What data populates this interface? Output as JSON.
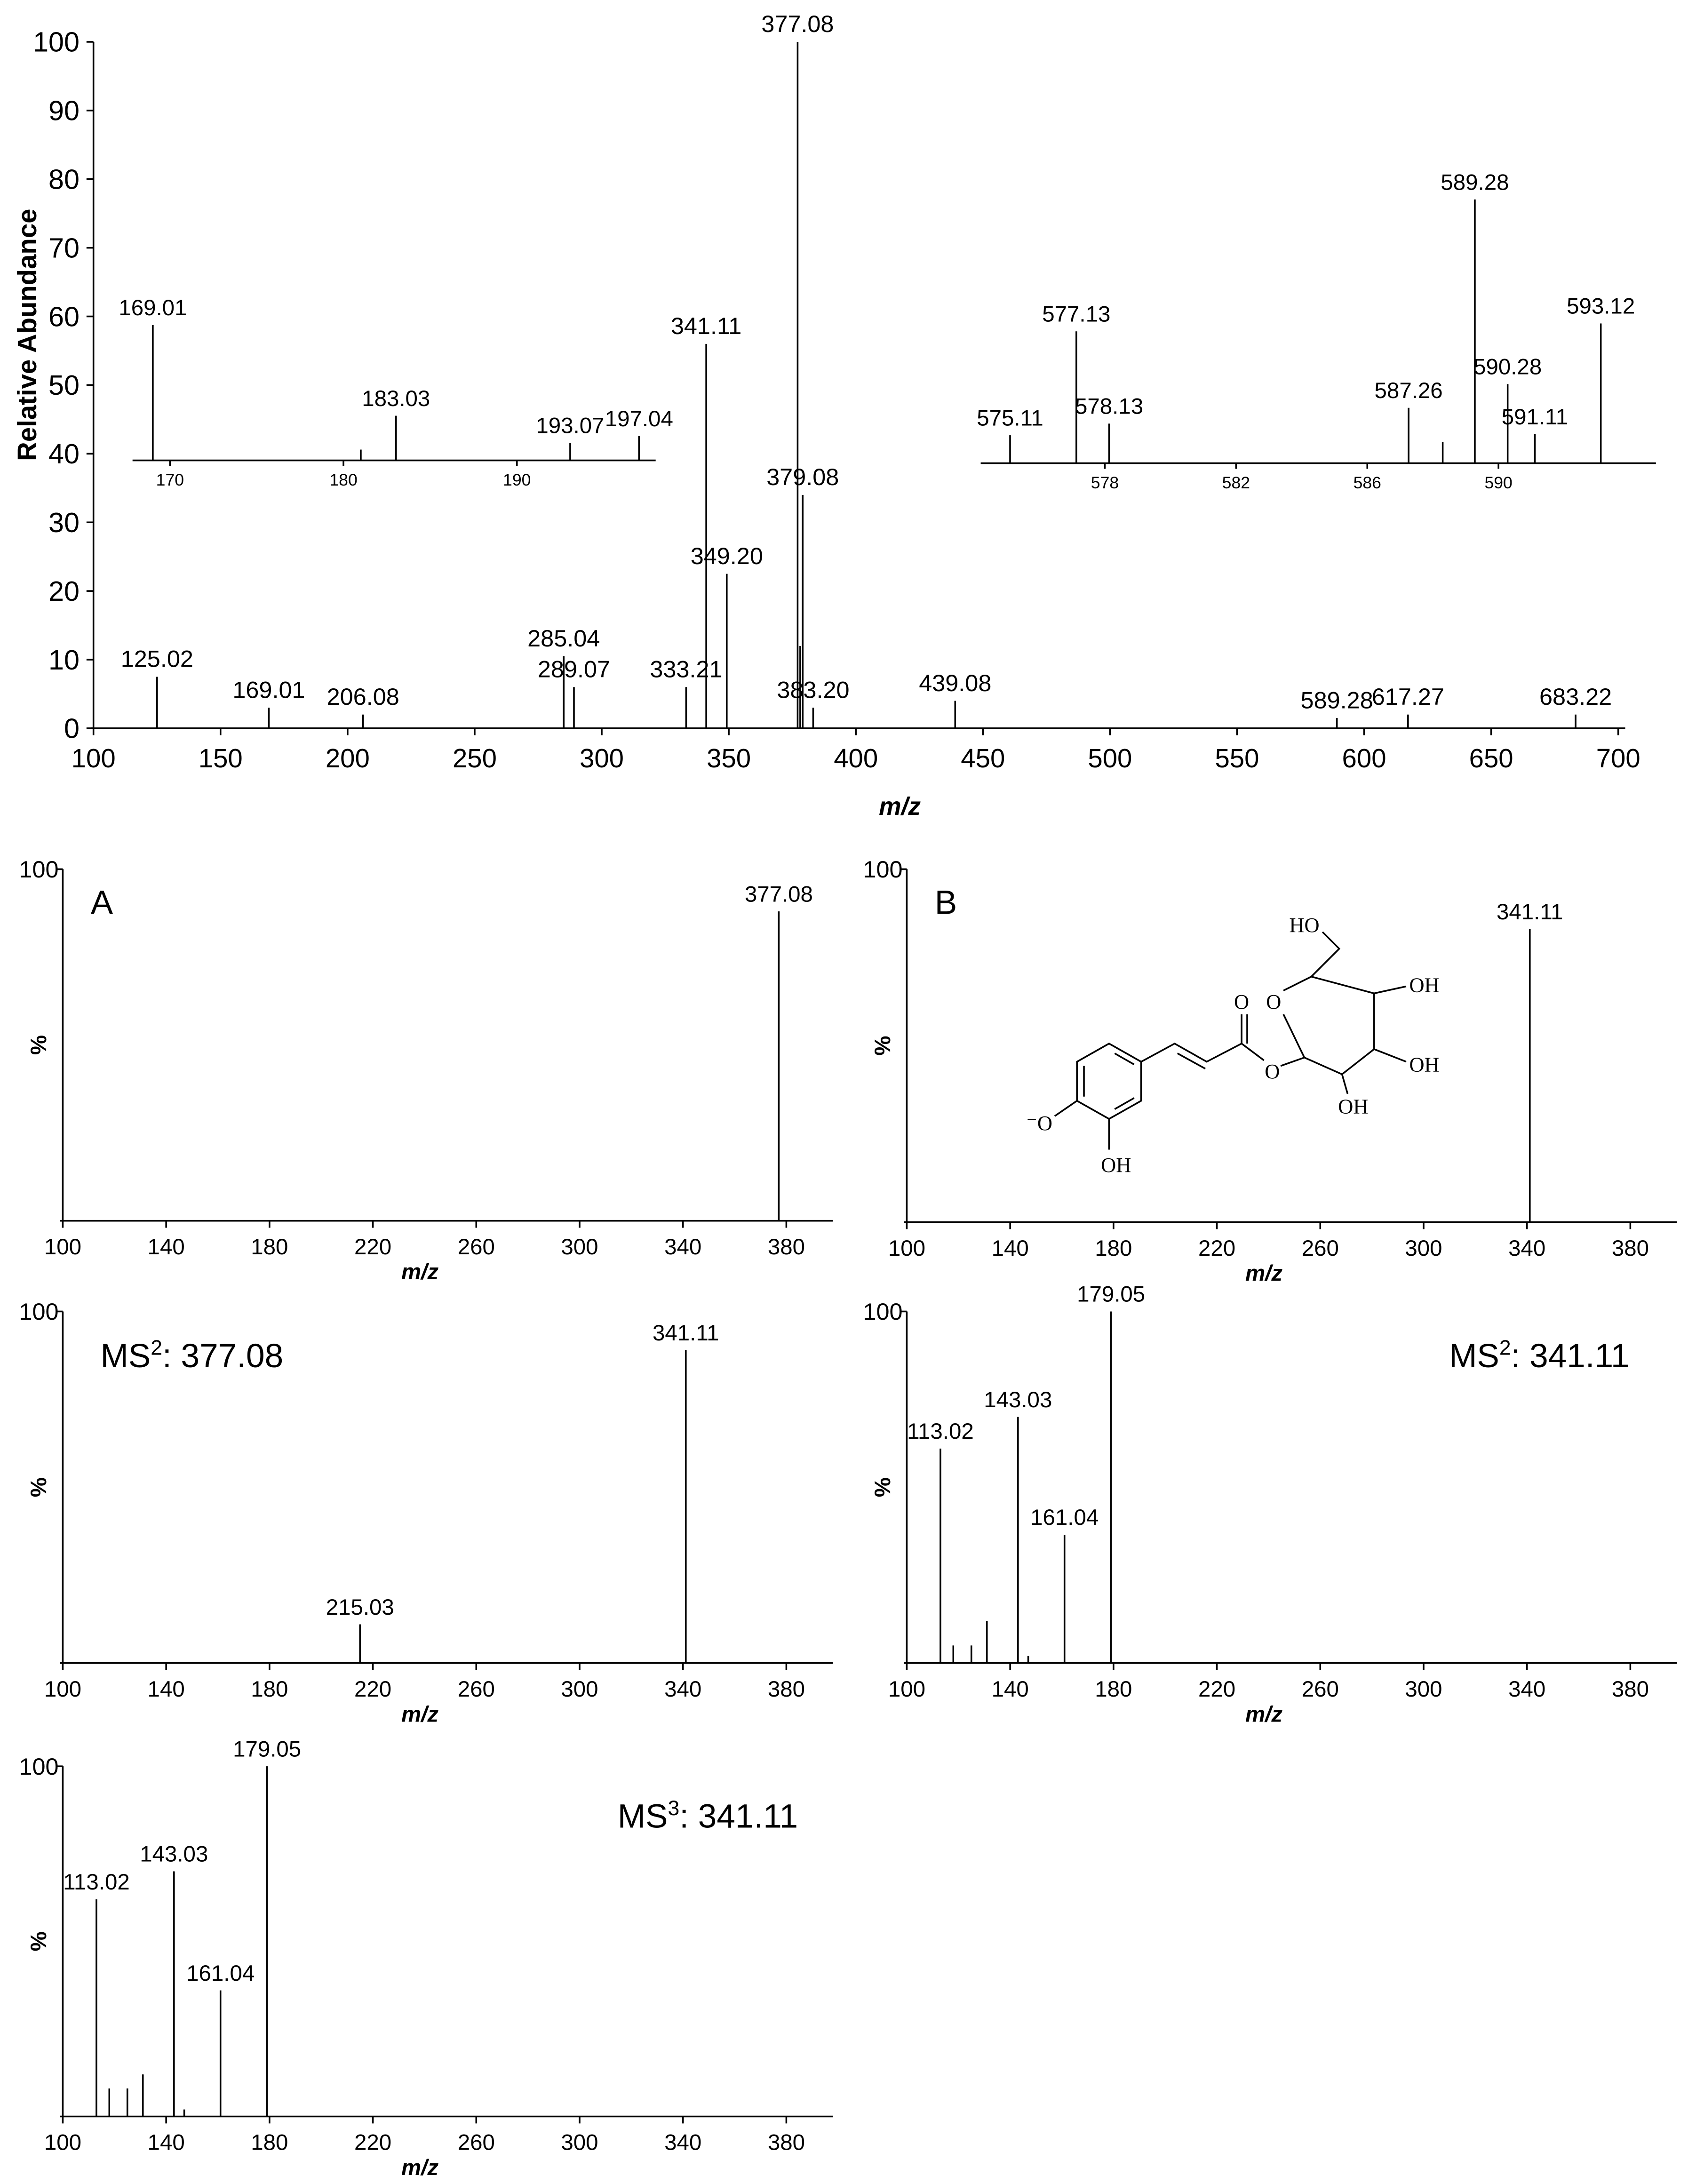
{
  "chart_data": [
    {
      "type": "bar",
      "ylabel": "Relative Abundance",
      "xlabel": "m/z",
      "color": "#000000",
      "xlim": [
        100,
        700
      ],
      "ylim": [
        0,
        100
      ],
      "xticks": [
        100,
        150,
        200,
        250,
        300,
        350,
        400,
        450,
        500,
        550,
        600,
        650,
        700
      ],
      "yticks": [
        0,
        10,
        20,
        30,
        40,
        50,
        60,
        70,
        80,
        90,
        100
      ],
      "x": [
        125.02,
        169.01,
        206.08,
        285.04,
        289.07,
        333.21,
        341.11,
        349.2,
        377.08,
        378.1,
        379.08,
        383.2,
        439.08,
        589.28,
        617.27,
        683.22
      ],
      "values": [
        7.5,
        3,
        2,
        10.5,
        6,
        6,
        56,
        22.5,
        100,
        12,
        34,
        3,
        4,
        1.5,
        2,
        2
      ],
      "peak_labels": [
        "125.02",
        "169.01",
        "206.08",
        "285.04",
        "289.07",
        "333.21",
        "341.11",
        "349.20",
        "377.08",
        null,
        "379.08",
        "383.20",
        "439.08",
        "589.28",
        "617.27",
        "683.22"
      ]
    },
    {
      "type": "bar",
      "color": "#000000",
      "xlim": [
        168,
        198
      ],
      "xticks": [
        170,
        180,
        190
      ],
      "x": [
        169.01,
        181,
        183.03,
        193.07,
        197.04
      ],
      "values": [
        100,
        8,
        33,
        13,
        18
      ],
      "peak_labels": [
        "169.01",
        null,
        "183.03",
        "193.07",
        "197.04"
      ]
    },
    {
      "type": "bar",
      "color": "#000000",
      "xlim": [
        574.3,
        594.8
      ],
      "xticks": [
        578,
        582,
        586,
        590
      ],
      "x": [
        575.11,
        577.13,
        578.13,
        587.26,
        588.3,
        589.28,
        590.28,
        591.11,
        593.12
      ],
      "values": [
        10.6,
        50,
        15,
        21,
        8,
        100,
        30,
        11,
        53
      ],
      "peak_labels": [
        "575.11",
        "577.13",
        "578.13",
        "587.26",
        null,
        "589.28",
        "590.28",
        "591.11",
        "593.12"
      ]
    },
    {
      "type": "bar",
      "ylabel": "%",
      "xlabel": "m/z",
      "annotation": [
        "A"
      ],
      "color": "#000000",
      "xlim": [
        100,
        398
      ],
      "ylim": [
        0,
        100
      ],
      "xticks": [
        100,
        140,
        180,
        220,
        260,
        300,
        340,
        380
      ],
      "yticks": [
        100
      ],
      "x": [
        377.08
      ],
      "values": [
        88
      ],
      "peak_labels": [
        "377.08"
      ]
    },
    {
      "type": "bar",
      "ylabel": "%",
      "xlabel": "m/z",
      "annotation": [
        "B"
      ],
      "color": "#000000",
      "xlim": [
        100,
        398
      ],
      "ylim": [
        0,
        100
      ],
      "xticks": [
        100,
        140,
        180,
        220,
        260,
        300,
        340,
        380
      ],
      "yticks": [
        100
      ],
      "x": [
        341.11
      ],
      "values": [
        83
      ],
      "peak_labels": [
        "341.11"
      ]
    },
    {
      "type": "bar",
      "ylabel": "%",
      "xlabel": "m/z",
      "annotation": [
        "MS",
        "2",
        ": 377.08"
      ],
      "color": "#000000",
      "xlim": [
        100,
        398
      ],
      "ylim": [
        0,
        100
      ],
      "xticks": [
        100,
        140,
        180,
        220,
        260,
        300,
        340,
        380
      ],
      "yticks": [
        100
      ],
      "x": [
        215.03,
        341.11
      ],
      "values": [
        11,
        89
      ],
      "peak_labels": [
        "215.03",
        "341.11"
      ]
    },
    {
      "type": "bar",
      "ylabel": "%",
      "xlabel": "m/z",
      "annotation": [
        "MS",
        "2",
        ": 341.11"
      ],
      "color": "#000000",
      "xlim": [
        100,
        398
      ],
      "ylim": [
        0,
        100
      ],
      "xticks": [
        100,
        140,
        180,
        220,
        260,
        300,
        340,
        380
      ],
      "yticks": [
        100
      ],
      "x": [
        113.02,
        118,
        125,
        131,
        143.03,
        147,
        161.04,
        179.05
      ],
      "values": [
        61,
        5,
        5,
        12,
        70,
        2,
        36.5,
        100
      ],
      "peak_labels": [
        "113.02",
        null,
        null,
        null,
        "143.03",
        null,
        "161.04",
        "179.05"
      ]
    },
    {
      "type": "bar",
      "ylabel": "%",
      "xlabel": "m/z",
      "annotation": [
        "MS",
        "3",
        ": 341.11"
      ],
      "color": "#000000",
      "xlim": [
        100,
        398
      ],
      "ylim": [
        0,
        100
      ],
      "xticks": [
        100,
        140,
        180,
        220,
        260,
        300,
        340,
        380
      ],
      "yticks": [
        100
      ],
      "x": [
        113.02,
        118,
        125,
        131,
        143.03,
        147,
        161.04,
        179.05
      ],
      "values": [
        62,
        8,
        8,
        12,
        70,
        2,
        36,
        100
      ],
      "peak_labels": [
        "113.02",
        null,
        null,
        null,
        "143.03",
        null,
        "161.04",
        "179.05"
      ]
    }
  ],
  "structure": {
    "labels": [
      "HO",
      "O",
      "O",
      "OH",
      "OH",
      "OH",
      "O",
      "⁻O",
      "OH"
    ]
  }
}
